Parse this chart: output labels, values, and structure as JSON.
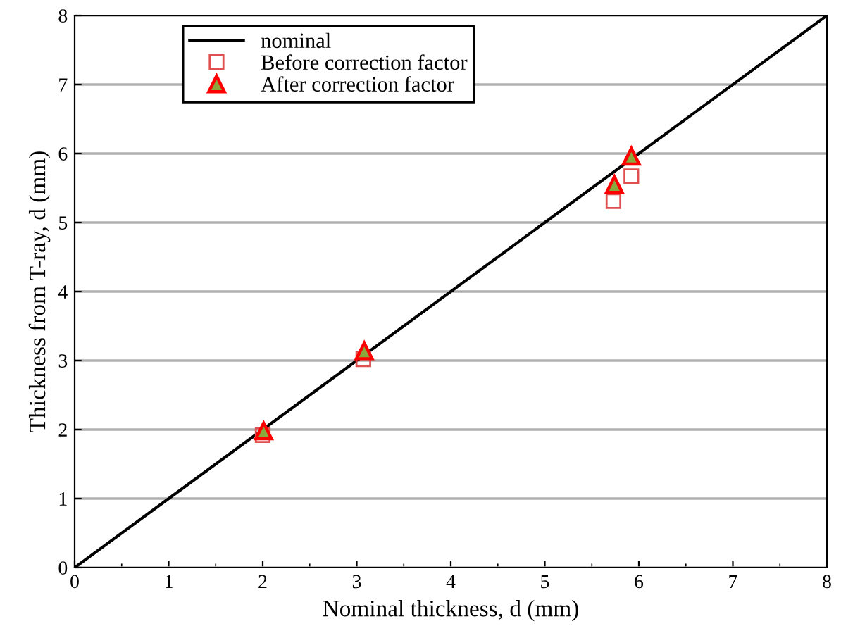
{
  "chart_data": {
    "type": "scatter",
    "xlabel": "Nominal thickness, d (mm)",
    "ylabel": "Thickness from T-ray, d (mm)",
    "xlim": [
      0,
      8
    ],
    "ylim": [
      0,
      8
    ],
    "xticks": [
      0,
      1,
      2,
      3,
      4,
      5,
      6,
      7,
      8
    ],
    "yticks": [
      0,
      1,
      2,
      3,
      4,
      5,
      6,
      7,
      8
    ],
    "grid": "y",
    "legend": "top left",
    "series": [
      {
        "name": "nominal",
        "type": "line",
        "color": "#000000",
        "marker": "none",
        "x": [
          0,
          8
        ],
        "values": [
          0,
          8
        ]
      },
      {
        "name": "Before correction factor",
        "color": "#e05050",
        "marker": "square",
        "x": [
          2.0,
          3.07,
          5.73,
          5.92
        ],
        "values": [
          1.92,
          3.02,
          5.31,
          5.67
        ]
      },
      {
        "name": "After correction factor",
        "color": "#ff0000",
        "marker": "triangle",
        "x": [
          2.01,
          3.08,
          5.74,
          5.92
        ],
        "values": [
          1.98,
          3.14,
          5.55,
          5.96
        ]
      }
    ]
  }
}
